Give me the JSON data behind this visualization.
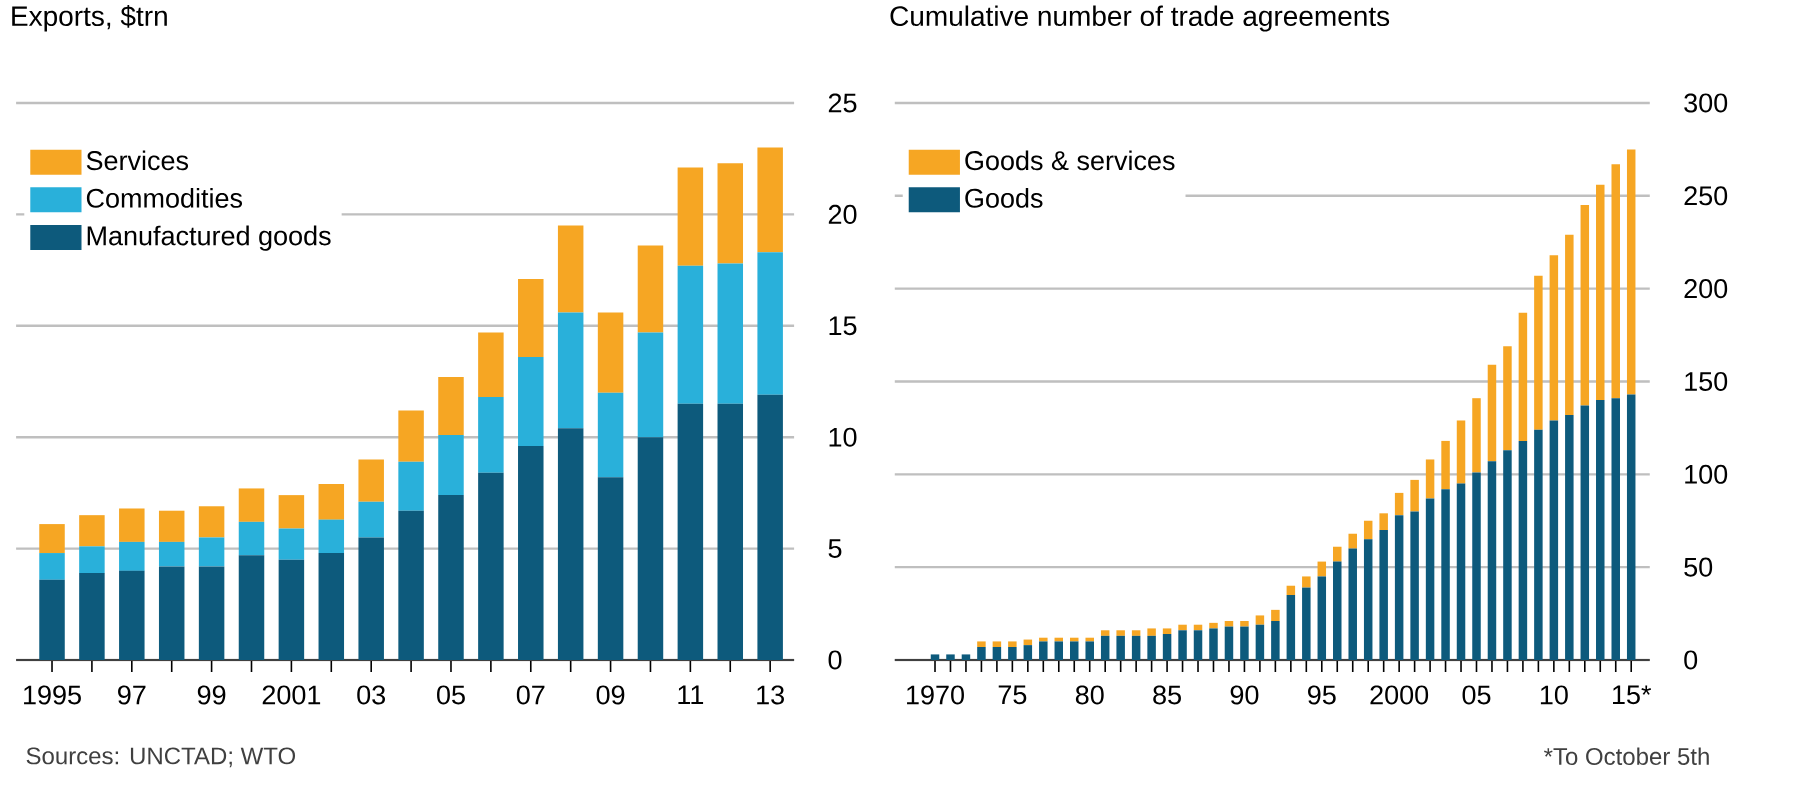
{
  "chart_data": [
    {
      "type": "bar",
      "title": "Exports, $trn",
      "stacked": true,
      "grid": "y",
      "legend": "top left",
      "categories": [
        "1995",
        null,
        "97",
        null,
        "99",
        null,
        "2001",
        null,
        "03",
        null,
        "05",
        null,
        "07",
        null,
        "09",
        null,
        "11",
        null,
        "13"
      ],
      "series": [
        {
          "name": "Manufactured goods",
          "color": "#0d5a7c",
          "values": [
            3.6,
            3.9,
            4.0,
            4.2,
            4.2,
            4.7,
            4.5,
            4.8,
            5.5,
            6.7,
            7.4,
            8.4,
            9.6,
            10.4,
            8.2,
            10.0,
            11.5,
            11.5,
            11.9
          ]
        },
        {
          "name": "Commodities",
          "color": "#29b0da",
          "values": [
            1.2,
            1.2,
            1.3,
            1.1,
            1.3,
            1.5,
            1.4,
            1.5,
            1.6,
            2.2,
            2.7,
            3.4,
            4.0,
            5.2,
            3.8,
            4.7,
            6.2,
            6.3,
            6.4
          ]
        },
        {
          "name": "Services",
          "color": "#f6a623",
          "values": [
            1.3,
            1.4,
            1.5,
            1.4,
            1.4,
            1.5,
            1.5,
            1.6,
            1.9,
            2.3,
            2.6,
            2.9,
            3.5,
            3.9,
            3.6,
            3.9,
            4.4,
            4.5,
            4.7
          ]
        }
      ],
      "ylim": [
        0,
        25
      ],
      "yticks": [
        0,
        5,
        10,
        15,
        20,
        25
      ],
      "annotations": [
        "Sources: UNCTAD; WTO"
      ]
    },
    {
      "type": "bar",
      "title": "Cumulative number of trade agreements",
      "stacked": true,
      "grid": "y",
      "legend": "top left",
      "categories": [
        "1970",
        null,
        null,
        null,
        null,
        "75",
        null,
        null,
        null,
        null,
        "80",
        null,
        null,
        null,
        null,
        "85",
        null,
        null,
        null,
        null,
        "90",
        null,
        null,
        null,
        null,
        "95",
        null,
        null,
        null,
        null,
        "2000",
        null,
        null,
        null,
        null,
        "05",
        null,
        null,
        null,
        null,
        "10",
        null,
        null,
        null,
        null,
        "15*"
      ],
      "series": [
        {
          "name": "Goods",
          "color": "#0d5a7c",
          "values": [
            3,
            3,
            3,
            7,
            7,
            7,
            8,
            10,
            10,
            10,
            10,
            13,
            13,
            13,
            13,
            14,
            16,
            16,
            17,
            18,
            18,
            19,
            21,
            35,
            39,
            45,
            53,
            60,
            65,
            70,
            78,
            80,
            87,
            92,
            95,
            101,
            107,
            113,
            118,
            124,
            129,
            132,
            137,
            140,
            141,
            143
          ]
        },
        {
          "name": "Goods & services",
          "color": "#f6a623",
          "values": [
            0,
            0,
            0,
            3,
            3,
            3,
            3,
            2,
            2,
            2,
            2,
            3,
            3,
            3,
            4,
            3,
            3,
            3,
            3,
            3,
            3,
            5,
            6,
            5,
            6,
            8,
            8,
            8,
            10,
            9,
            12,
            17,
            21,
            26,
            34,
            40,
            52,
            56,
            69,
            83,
            89,
            97,
            108,
            116,
            126,
            132
          ]
        }
      ],
      "ylim": [
        0,
        300
      ],
      "yticks": [
        0,
        50,
        100,
        150,
        200,
        250,
        300
      ],
      "annotations": [
        "*To October 5th"
      ]
    }
  ]
}
